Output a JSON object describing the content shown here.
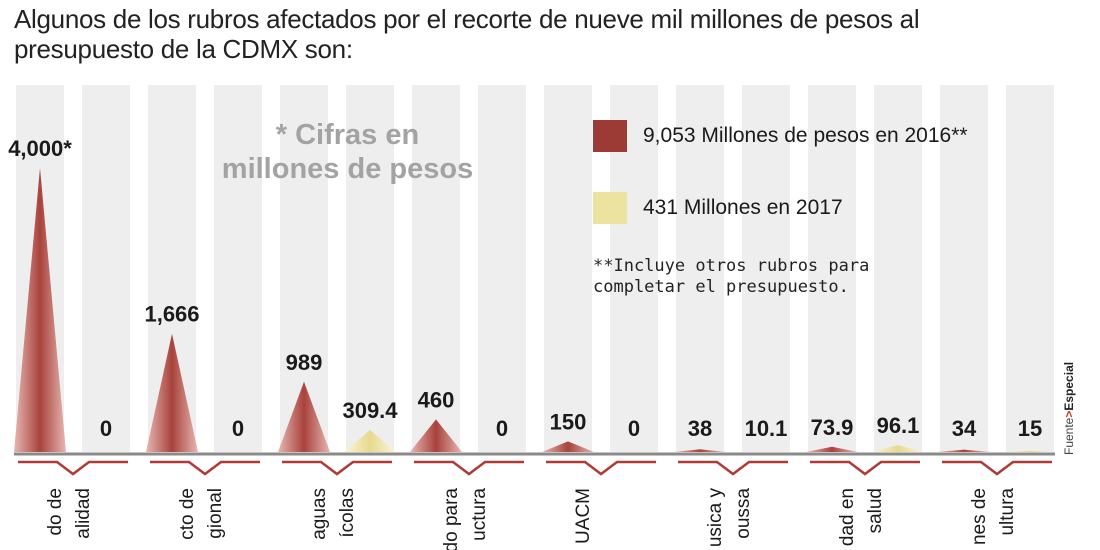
{
  "title": "Algunos de los rubros afectados por el recorte de nueve mil millones de pesos al presupuesto de la CDMX son:",
  "note": "* Cifras en millones de pesos",
  "legend": {
    "item1": "9,053 Millones de pesos en 2016**",
    "item2": "431 Millones en 2017"
  },
  "footnote": "**Incluye otros rubros para completar el presupuesto.",
  "source": {
    "label": "Fuente",
    "arrow": ">",
    "name": "Especial"
  },
  "colors": {
    "y2016": "#9c3a35",
    "y2017": "#ede3a0",
    "bar_bg": "#eeeeee",
    "axis": "#8a8a8a",
    "bracket": "#b23a36"
  },
  "chart_data": {
    "type": "bar",
    "title": "Algunos de los rubros afectados por el recorte de nueve mil millones de pesos al presupuesto de la CDMX son:",
    "ylabel": "Millones de pesos",
    "ylim": [
      0,
      4000
    ],
    "categories": [
      [
        "do de",
        "alidad"
      ],
      [
        "cto de",
        "gional"
      ],
      [
        "aguas",
        "ícolas"
      ],
      [
        "do para",
        "uctura"
      ],
      [
        "UACM"
      ],
      [
        "usica y",
        "oussa"
      ],
      [
        "dad en",
        "salud"
      ],
      [
        "nes de",
        "ultura"
      ]
    ],
    "series": [
      {
        "name": "2016",
        "values": [
          4000,
          1666,
          989,
          460,
          150,
          38,
          73.9,
          34
        ],
        "labels": [
          "4,000*",
          "1,666",
          "989",
          "460",
          "150",
          "38",
          "73.9",
          "34"
        ]
      },
      {
        "name": "2017",
        "values": [
          0,
          0,
          309.4,
          0,
          0,
          10.1,
          96.1,
          15
        ],
        "labels": [
          "0",
          "0",
          "309.4",
          "0",
          "0",
          "10.1",
          "96.1",
          "15"
        ]
      }
    ]
  }
}
